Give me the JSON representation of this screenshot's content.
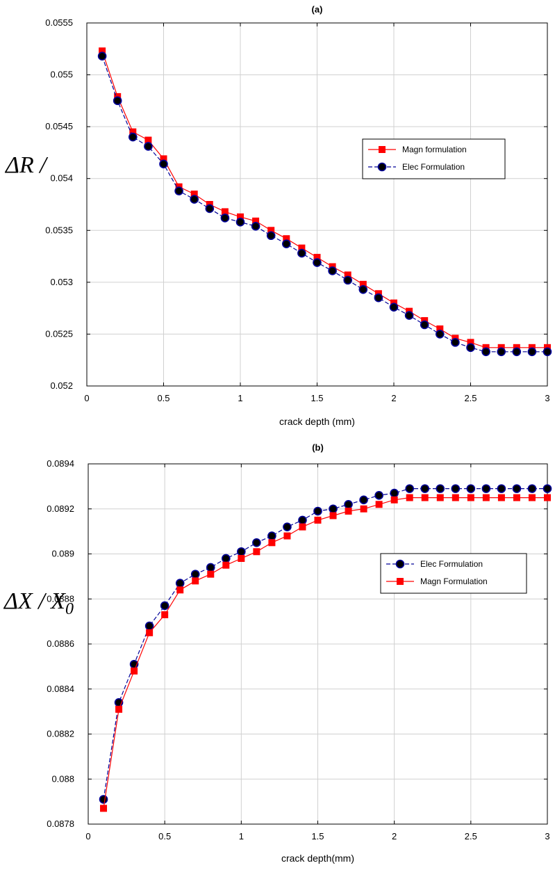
{
  "chart_data": [
    {
      "type": "line",
      "title": "(a)",
      "xlabel": "crack depth (mm)",
      "ylabel_text": "ΔR / ",
      "xlim": [
        0,
        3
      ],
      "ylim": [
        0.052,
        0.0555
      ],
      "xticks": [
        "0",
        "0.5",
        "1",
        "1.5",
        "2",
        "2.5",
        "3"
      ],
      "xtick_values": [
        0,
        0.5,
        1,
        1.5,
        2,
        2.5,
        3
      ],
      "yticks": [
        "0.052",
        "0.0525",
        "0.053",
        "0.0535",
        "0.054",
        "0.0545",
        "0.055",
        "0.0555"
      ],
      "ytick_values": [
        0.052,
        0.0525,
        0.053,
        0.0535,
        0.054,
        0.0545,
        0.055,
        0.0555
      ],
      "grid": true,
      "legend_position": "center-right",
      "x": [
        0.1,
        0.2,
        0.3,
        0.4,
        0.5,
        0.6,
        0.7,
        0.8,
        0.9,
        1.0,
        1.1,
        1.2,
        1.3,
        1.4,
        1.5,
        1.6,
        1.7,
        1.8,
        1.9,
        2.0,
        2.1,
        2.2,
        2.3,
        2.4,
        2.5,
        2.6,
        2.7,
        2.8,
        2.9,
        3.0
      ],
      "series": [
        {
          "name": "Magn formulation",
          "color": "#ff0000",
          "marker": "square",
          "line": "solid",
          "values": [
            0.05523,
            0.05479,
            0.05445,
            0.05437,
            0.05419,
            0.05392,
            0.05385,
            0.05375,
            0.05368,
            0.05363,
            0.05359,
            0.0535,
            0.05342,
            0.05333,
            0.05324,
            0.05315,
            0.05307,
            0.05298,
            0.05289,
            0.0528,
            0.05272,
            0.05263,
            0.05255,
            0.05246,
            0.05242,
            0.05237,
            0.05237,
            0.05237,
            0.05237,
            0.05237
          ]
        },
        {
          "name": "Elec Formulation",
          "color": "#000099",
          "marker": "circle",
          "line": "dashed",
          "values": [
            0.05518,
            0.05475,
            0.0544,
            0.05431,
            0.05414,
            0.05388,
            0.0538,
            0.05371,
            0.05362,
            0.05358,
            0.05354,
            0.05345,
            0.05337,
            0.05328,
            0.05319,
            0.05311,
            0.05302,
            0.05293,
            0.05285,
            0.05276,
            0.05268,
            0.05259,
            0.0525,
            0.05242,
            0.05237,
            0.05233,
            0.05233,
            0.05233,
            0.05233,
            0.05233
          ]
        }
      ]
    },
    {
      "type": "line",
      "title": "(b)",
      "xlabel": "crack depth(mm)",
      "ylabel_text": "ΔX / X",
      "ylabel_sub": "0",
      "xlim": [
        0,
        3
      ],
      "ylim": [
        0.0878,
        0.0894
      ],
      "xticks": [
        "0",
        "0.5",
        "1",
        "1.5",
        "2",
        "2.5",
        "3"
      ],
      "xtick_values": [
        0,
        0.5,
        1,
        1.5,
        2,
        2.5,
        3
      ],
      "yticks": [
        "0.0878",
        "0.088",
        "0.0882",
        "0.0884",
        "0.0886",
        "0.0888",
        "0.089",
        "0.0892",
        "0.0894"
      ],
      "ytick_values": [
        0.0878,
        0.088,
        0.0882,
        0.0884,
        0.0886,
        0.0888,
        0.089,
        0.0892,
        0.0894
      ],
      "grid": true,
      "legend_position": "center-right",
      "x": [
        0.1,
        0.2,
        0.3,
        0.4,
        0.5,
        0.6,
        0.7,
        0.8,
        0.9,
        1.0,
        1.1,
        1.2,
        1.3,
        1.4,
        1.5,
        1.6,
        1.7,
        1.8,
        1.9,
        2.0,
        2.1,
        2.2,
        2.3,
        2.4,
        2.5,
        2.6,
        2.7,
        2.8,
        2.9,
        3.0
      ],
      "series": [
        {
          "name": "Elec Formulation",
          "color": "#000099",
          "marker": "circle",
          "line": "dashed",
          "values": [
            0.08791,
            0.08834,
            0.08851,
            0.08868,
            0.08877,
            0.08887,
            0.08891,
            0.08894,
            0.08898,
            0.08901,
            0.08905,
            0.08908,
            0.08912,
            0.08915,
            0.08919,
            0.0892,
            0.08922,
            0.08924,
            0.08926,
            0.08927,
            0.08929,
            0.08929,
            0.08929,
            0.08929,
            0.08929,
            0.08929,
            0.08929,
            0.08929,
            0.08929,
            0.08929
          ]
        },
        {
          "name": "Magn Formulation",
          "color": "#ff0000",
          "marker": "square",
          "line": "solid",
          "values": [
            0.08787,
            0.08831,
            0.08848,
            0.08865,
            0.08873,
            0.08884,
            0.08888,
            0.08891,
            0.08895,
            0.08898,
            0.08901,
            0.08905,
            0.08908,
            0.08912,
            0.08915,
            0.08917,
            0.08919,
            0.0892,
            0.08922,
            0.08924,
            0.08925,
            0.08925,
            0.08925,
            0.08925,
            0.08925,
            0.08925,
            0.08925,
            0.08925,
            0.08925,
            0.08925
          ]
        }
      ]
    }
  ]
}
